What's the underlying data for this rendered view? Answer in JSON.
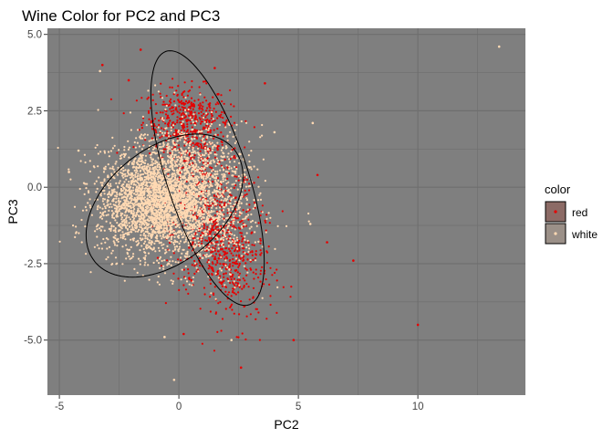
{
  "chart_data": {
    "type": "scatter",
    "title": "Wine Color for PC2 and PC3",
    "xlabel": "PC2",
    "ylabel": "PC3",
    "xlim": [
      -5.5,
      14.5
    ],
    "ylim": [
      -6.8,
      5.2
    ],
    "x_ticks": [
      -5,
      0,
      5,
      10
    ],
    "x_tick_labels": [
      "-5",
      "0",
      "5",
      "10"
    ],
    "y_ticks": [
      -5.0,
      -2.5,
      0.0,
      2.5,
      5.0
    ],
    "y_tick_labels": [
      "-5.0",
      "-2.5",
      "0.0",
      "2.5",
      "5.0"
    ],
    "grid": true,
    "background": "#7f7f7f",
    "grid_color": "#6e6e6e",
    "legend": {
      "title": "color",
      "position": "right"
    },
    "series": [
      {
        "name": "red",
        "color": "#e60000",
        "clusters": [
          {
            "cx": 0.3,
            "cy": 2.3,
            "sx": 0.9,
            "sy": 0.5,
            "n": 350
          },
          {
            "cx": 1.5,
            "cy": -1.5,
            "sx": 0.9,
            "sy": 0.9,
            "n": 500
          },
          {
            "cx": 0.8,
            "cy": 1.0,
            "sx": 0.9,
            "sy": 0.8,
            "n": 250
          },
          {
            "cx": 2.5,
            "cy": -3.0,
            "sx": 0.8,
            "sy": 0.8,
            "n": 200
          }
        ],
        "outliers": [
          [
            -1.6,
            4.5
          ],
          [
            -3.2,
            4.0
          ],
          [
            10.0,
            -4.5
          ],
          [
            2.6,
            -5.9
          ],
          [
            0.2,
            -4.8
          ],
          [
            4.8,
            -5.0
          ],
          [
            7.3,
            -2.4
          ],
          [
            5.8,
            0.4
          ],
          [
            6.2,
            -1.8
          ],
          [
            -2.1,
            3.5
          ],
          [
            1.5,
            3.9
          ],
          [
            3.6,
            3.4
          ]
        ]
      },
      {
        "name": "white",
        "color": "#ffd9b3",
        "clusters": [
          {
            "cx": -1.0,
            "cy": -0.5,
            "sx": 1.2,
            "sy": 0.85,
            "n": 2400
          },
          {
            "cx": 0.5,
            "cy": 0.3,
            "sx": 1.2,
            "sy": 1.0,
            "n": 900
          },
          {
            "cx": 1.5,
            "cy": -1.2,
            "sx": 1.1,
            "sy": 1.0,
            "n": 350
          }
        ],
        "outliers": [
          [
            13.4,
            4.6
          ],
          [
            -0.2,
            -6.3
          ],
          [
            -0.6,
            -4.9
          ],
          [
            5.6,
            2.1
          ],
          [
            -3.3,
            3.8
          ],
          [
            -4.2,
            1.2
          ],
          [
            -4.6,
            0.5
          ],
          [
            4.0,
            1.8
          ],
          [
            5.5,
            -1.2
          ],
          [
            2.2,
            -5.0
          ]
        ]
      }
    ],
    "ellipses": [
      {
        "series": "red",
        "cx": 1.2,
        "cy": 0.3,
        "angle_deg": -66,
        "a": 4.5,
        "b": 1.65
      },
      {
        "series": "white",
        "cx": -0.6,
        "cy": -0.6,
        "angle_deg": 25,
        "a": 3.5,
        "b": 2.0
      }
    ]
  }
}
